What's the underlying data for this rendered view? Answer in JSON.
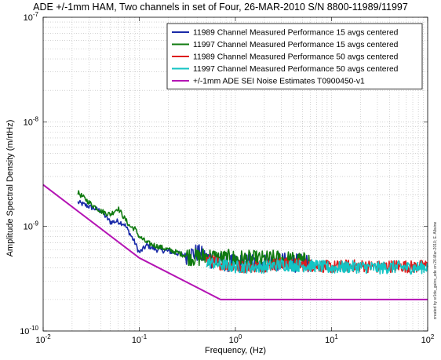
{
  "chart_data": {
    "type": "line",
    "title": "ADE +/-1mm HAM, Two channels in set of Four,   26-MAR-2010  S/N 8800-11989/11997",
    "xlabel": "Frequency, (Hz)",
    "ylabel": "Amplitude Spectral Density (m/rtHz)",
    "credit": "created by sr1de_gains_ade on 26-Mar-2010; E. Allwine",
    "xscale": "log",
    "yscale": "log",
    "xlim": [
      0.01,
      100
    ],
    "ylim": [
      1e-10,
      1e-07
    ],
    "grid": true,
    "legend_position": "top-right",
    "x_ticks": [
      {
        "value": 0.01,
        "base": "10",
        "exp": "-2"
      },
      {
        "value": 0.1,
        "base": "10",
        "exp": "-1"
      },
      {
        "value": 1,
        "base": "10",
        "exp": "0"
      },
      {
        "value": 10,
        "base": "10",
        "exp": "1"
      },
      {
        "value": 100,
        "base": "10",
        "exp": "2"
      }
    ],
    "y_ticks": [
      {
        "value": 1e-10,
        "base": "10",
        "exp": "-10"
      },
      {
        "value": 1e-09,
        "base": "10",
        "exp": "-9"
      },
      {
        "value": 1e-08,
        "base": "10",
        "exp": "-8"
      },
      {
        "value": 1e-07,
        "base": "10",
        "exp": "-7"
      }
    ],
    "series": [
      {
        "name": "11989 Channel Measured Performance 15 avgs centered",
        "color": "#1a2aa8",
        "x": [
          0.023,
          0.03,
          0.04,
          0.05,
          0.06,
          0.07,
          0.08,
          0.09,
          0.1,
          0.12,
          0.15,
          0.2,
          0.3,
          0.4,
          0.5,
          0.7,
          1.0,
          1.5,
          2,
          3,
          4,
          5,
          6
        ],
        "y": [
          1.7e-09,
          1.55e-09,
          1.4e-09,
          1.1e-09,
          1.12e-09,
          1.05e-09,
          8.5e-10,
          7e-10,
          5.6e-10,
          6.6e-10,
          6e-10,
          5.8e-10,
          5.3e-10,
          5.6e-10,
          5e-10,
          4.6e-10,
          4.4e-10,
          4.6e-10,
          4.5e-10,
          4.6e-10,
          4.5e-10,
          4.4e-10,
          4.5e-10
        ]
      },
      {
        "name": "11997 Channel Measured Performance 15 avgs centered",
        "color": "#0f7a0f",
        "x": [
          0.023,
          0.03,
          0.04,
          0.05,
          0.06,
          0.07,
          0.08,
          0.09,
          0.1,
          0.12,
          0.15,
          0.2,
          0.3,
          0.4,
          0.5,
          0.7,
          1.0,
          1.5,
          2,
          3,
          4,
          5,
          6
        ],
        "y": [
          2.1e-09,
          1.7e-09,
          1.4e-09,
          1.3e-09,
          1.5e-09,
          1.2e-09,
          1e-09,
          9.5e-10,
          8e-10,
          7e-10,
          6.5e-10,
          6e-10,
          5.3e-10,
          5e-10,
          5.2e-10,
          4.9e-10,
          4.9e-10,
          4.8e-10,
          4.8e-10,
          4.9e-10,
          4.7e-10,
          4.6e-10,
          4.7e-10
        ]
      },
      {
        "name": "11989 Channel Measured Performance 50 avgs centered",
        "color": "#dd1c1c",
        "x": [
          0.5,
          0.7,
          1,
          2,
          3,
          5,
          7,
          10,
          15,
          20,
          30,
          50,
          70,
          100
        ],
        "y": [
          4.8e-10,
          4.4e-10,
          4.1e-10,
          4.2e-10,
          4.4e-10,
          4.3e-10,
          4.2e-10,
          4.1e-10,
          4.2e-10,
          4.2e-10,
          4.1e-10,
          4.2e-10,
          4.1e-10,
          4.2e-10
        ]
      },
      {
        "name": "11997 Channel Measured Performance 50 avgs centered",
        "color": "#14c4c4",
        "x": [
          0.5,
          0.7,
          1,
          2,
          3,
          5,
          7,
          10,
          15,
          20,
          30,
          50,
          70,
          100
        ],
        "y": [
          4.6e-10,
          4.3e-10,
          4.1e-10,
          4.1e-10,
          4.3e-10,
          4.2e-10,
          4.2e-10,
          4e-10,
          4.1e-10,
          4.1e-10,
          4e-10,
          4.1e-10,
          4e-10,
          4.1e-10
        ]
      },
      {
        "name": "+/-1mm ADE SEI Noise Estimates T0900450-v1",
        "color": "#b414b4",
        "x": [
          0.01,
          0.1,
          0.7,
          100
        ],
        "y": [
          2.5e-09,
          5e-10,
          2e-10,
          2e-10
        ]
      }
    ]
  }
}
